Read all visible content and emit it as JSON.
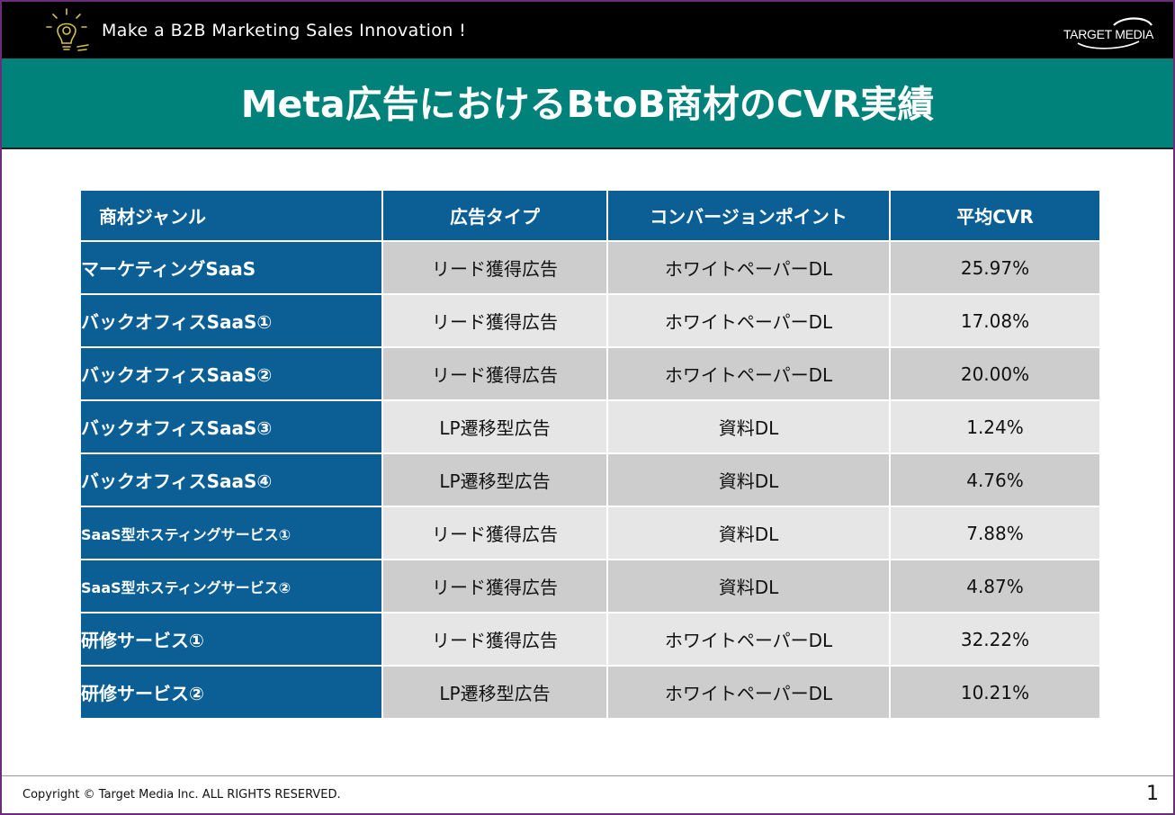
{
  "header": {
    "tagline": "Make a B2B Marketing Sales Innovation !",
    "logo_text": "TARGET MEDIA"
  },
  "title": "Meta広告におけるBtoB商材のCVR実績",
  "table": {
    "columns": [
      "商材ジャンル",
      "広告タイプ",
      "コンバージョンポイント",
      "平均CVR"
    ],
    "rows": [
      {
        "genre": "マーケティングSaaS",
        "ad_type": "リード獲得広告",
        "cv_point": "ホワイトペーパーDL",
        "cvr": "25.97%"
      },
      {
        "genre": "バックオフィスSaaS①",
        "ad_type": "リード獲得広告",
        "cv_point": "ホワイトペーパーDL",
        "cvr": "17.08%"
      },
      {
        "genre": "バックオフィスSaaS②",
        "ad_type": "リード獲得広告",
        "cv_point": "ホワイトペーパーDL",
        "cvr": "20.00%"
      },
      {
        "genre": "バックオフィスSaaS③",
        "ad_type": "LP遷移型広告",
        "cv_point": "資料DL",
        "cvr": "1.24%"
      },
      {
        "genre": "バックオフィスSaaS④",
        "ad_type": "LP遷移型広告",
        "cv_point": "資料DL",
        "cvr": "4.76%"
      },
      {
        "genre": "SaaS型ホスティングサービス①",
        "ad_type": "リード獲得広告",
        "cv_point": "資料DL",
        "cvr": "7.88%"
      },
      {
        "genre": "SaaS型ホスティングサービス②",
        "ad_type": "リード獲得広告",
        "cv_point": "資料DL",
        "cvr": "4.87%"
      },
      {
        "genre": "研修サービス①",
        "ad_type": "リード獲得広告",
        "cv_point": "ホワイトペーパーDL",
        "cvr": "32.22%"
      },
      {
        "genre": "研修サービス②",
        "ad_type": "LP遷移型広告",
        "cv_point": "ホワイトペーパーDL",
        "cvr": "10.21%"
      }
    ]
  },
  "footer": {
    "copyright": "Copyright © Target Media Inc. ALL RIGHTS RESERVED.",
    "page_number": "1"
  },
  "colors": {
    "header_bg": "#000000",
    "title_bg": "#00827b",
    "table_header_bg": "#0b5f95",
    "row_dark": "#cdcdcd",
    "row_light": "#e6e6e6",
    "frame": "#6b2c7a"
  },
  "icons": [
    "lightbulb-icon",
    "target-media-logo"
  ]
}
